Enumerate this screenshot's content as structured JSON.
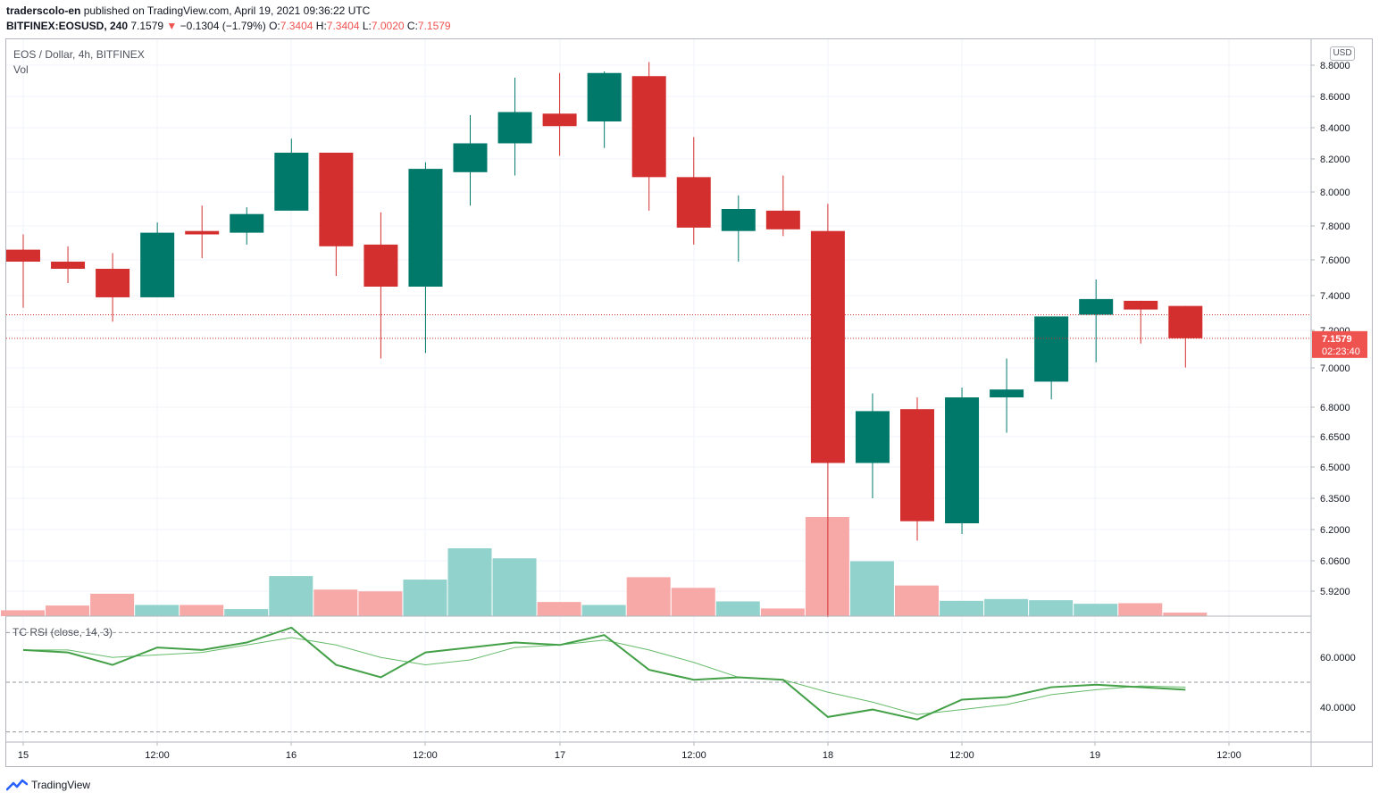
{
  "header": {
    "publisher": "traderscolo-en",
    "published_text": "published on TradingView.com, April 19, 2021 09:36:22 UTC",
    "symbol": "BITFINEX:EOSUSD, 240",
    "last": "7.1579",
    "change_arrow": "▼",
    "change": "−0.1304 (−1.79%)",
    "o_label": "O:",
    "o_value": "7.3404",
    "h_label": "H:",
    "h_value": "7.3404",
    "l_label": "L:",
    "l_value": "7.0020",
    "c_label": "C:",
    "c_value": "7.1579"
  },
  "legend": {
    "main": "EOS / Dollar, 4h, BITFINEX",
    "vol": "Vol",
    "rsi": "TC RSI (close, 14, 3)"
  },
  "currency_button": "USD",
  "price_label": {
    "value": "7.1579",
    "countdown": "02:23:40"
  },
  "brand": {
    "name": "TradingView",
    "icon": "tradingview-logo-icon"
  },
  "colors": {
    "up": "#00796b",
    "down": "#d32f2f",
    "vol_up": "#92d2cc",
    "vol_down": "#f7a9a7",
    "rsi": "#43a047",
    "price_label_bg": "#ef5350"
  },
  "chart_data": {
    "type": "candlestick",
    "timeframe": "4h",
    "candles": [
      {
        "o": 7.66,
        "h": 7.75,
        "l": 7.33,
        "c": 7.59,
        "vol": 1.0
      },
      {
        "o": 7.59,
        "h": 7.68,
        "l": 7.47,
        "c": 7.55,
        "vol": 1.8
      },
      {
        "o": 7.55,
        "h": 7.64,
        "l": 7.25,
        "c": 7.39,
        "vol": 3.8
      },
      {
        "o": 7.39,
        "h": 7.82,
        "l": 7.39,
        "c": 7.76,
        "vol": 1.9
      },
      {
        "o": 7.77,
        "h": 7.92,
        "l": 7.61,
        "c": 7.75,
        "vol": 1.9
      },
      {
        "o": 7.76,
        "h": 7.91,
        "l": 7.69,
        "c": 7.87,
        "vol": 1.2
      },
      {
        "o": 7.89,
        "h": 8.33,
        "l": 7.89,
        "c": 8.24,
        "vol": 6.8
      },
      {
        "o": 8.24,
        "h": 8.24,
        "l": 7.51,
        "c": 7.68,
        "vol": 4.5
      },
      {
        "o": 7.69,
        "h": 7.88,
        "l": 7.05,
        "c": 7.45,
        "vol": 4.2
      },
      {
        "o": 7.45,
        "h": 8.18,
        "l": 7.08,
        "c": 8.14,
        "vol": 6.2
      },
      {
        "o": 8.12,
        "h": 8.48,
        "l": 7.92,
        "c": 8.3,
        "vol": 11.5
      },
      {
        "o": 8.3,
        "h": 8.72,
        "l": 8.1,
        "c": 8.5,
        "vol": 9.8
      },
      {
        "o": 8.49,
        "h": 8.75,
        "l": 8.22,
        "c": 8.41,
        "vol": 2.4
      },
      {
        "o": 8.44,
        "h": 8.76,
        "l": 8.27,
        "c": 8.75,
        "vol": 1.9
      },
      {
        "o": 8.73,
        "h": 8.82,
        "l": 7.89,
        "c": 8.09,
        "vol": 6.6
      },
      {
        "o": 8.09,
        "h": 8.34,
        "l": 7.69,
        "c": 7.79,
        "vol": 4.8
      },
      {
        "o": 7.77,
        "h": 7.98,
        "l": 7.59,
        "c": 7.9,
        "vol": 2.5
      },
      {
        "o": 7.89,
        "h": 8.1,
        "l": 7.74,
        "c": 7.78,
        "vol": 1.3
      },
      {
        "o": 7.77,
        "h": 7.93,
        "l": 5.8,
        "c": 6.52,
        "vol": 16.8
      },
      {
        "o": 6.52,
        "h": 6.87,
        "l": 6.35,
        "c": 6.78,
        "vol": 9.3
      },
      {
        "o": 6.79,
        "h": 6.85,
        "l": 6.15,
        "c": 6.24,
        "vol": 5.2
      },
      {
        "o": 6.23,
        "h": 6.9,
        "l": 6.18,
        "c": 6.85,
        "vol": 2.6
      },
      {
        "o": 6.85,
        "h": 7.05,
        "l": 6.67,
        "c": 6.89,
        "vol": 2.9
      },
      {
        "o": 6.93,
        "h": 7.28,
        "l": 6.84,
        "c": 7.28,
        "vol": 2.7
      },
      {
        "o": 7.29,
        "h": 7.49,
        "l": 7.03,
        "c": 7.38,
        "vol": 2.1
      },
      {
        "o": 7.37,
        "h": 7.37,
        "l": 7.13,
        "c": 7.32,
        "vol": 2.2
      },
      {
        "o": 7.3404,
        "h": 7.3404,
        "l": 7.002,
        "c": 7.1579,
        "vol": 0.6
      }
    ],
    "rsi": [
      63,
      62,
      57,
      64,
      63,
      66,
      72,
      57,
      52,
      62,
      64,
      66,
      65,
      69,
      55,
      51,
      52,
      51,
      36,
      39,
      35,
      43,
      44,
      48,
      49,
      48,
      47
    ],
    "rsi_signal": [
      63,
      63,
      60,
      61,
      62,
      65,
      68,
      65,
      60,
      57,
      59,
      64,
      65,
      67,
      63,
      58,
      52,
      51,
      46,
      42,
      37,
      39,
      41,
      45,
      47,
      48.5,
      48
    ],
    "y_ticks": [
      "8.8000",
      "8.6000",
      "8.4000",
      "8.2000",
      "8.0000",
      "7.8000",
      "7.6000",
      "7.4000",
      "7.2000",
      "7.0000",
      "6.8000",
      "6.6500",
      "6.5000",
      "6.3500",
      "6.2000",
      "6.0600",
      "5.9200"
    ],
    "rsi_ticks": [
      "60.0000",
      "40.0000"
    ],
    "x_ticks": [
      "15",
      "12:00",
      "16",
      "12:00",
      "17",
      "12:00",
      "18",
      "12:00",
      "19",
      "12:00"
    ],
    "prev_close_line": 7.29,
    "last_price": 7.1579,
    "rsi_bands": [
      70,
      50,
      30
    ]
  }
}
